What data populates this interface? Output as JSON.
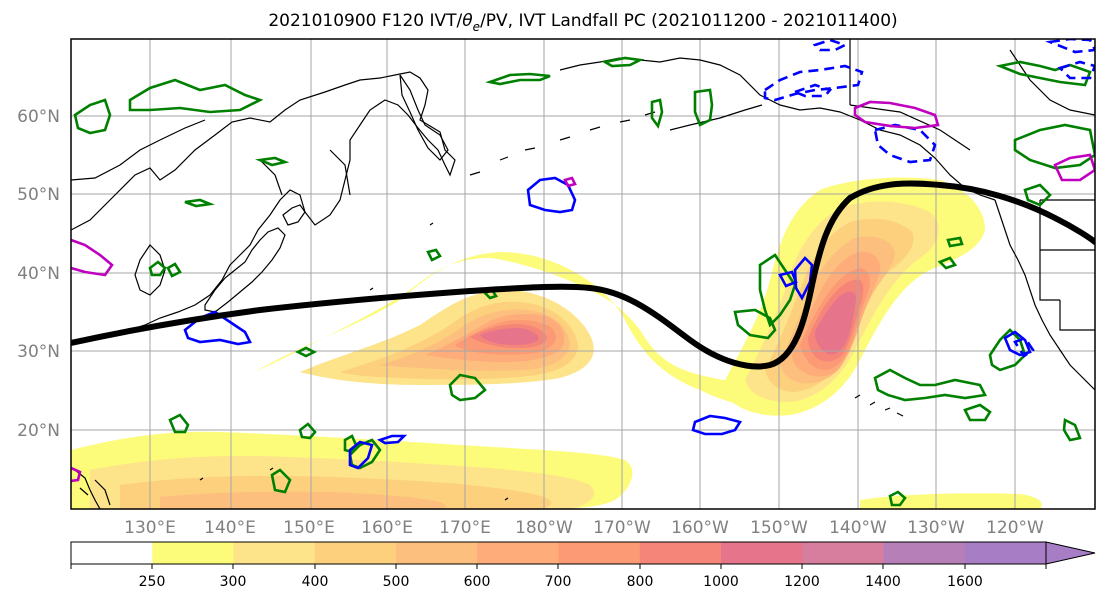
{
  "title_parts": {
    "prefix": "2021010900 F120 IVT/",
    "theta": "θ",
    "sub": "e",
    "suffix": "/PV, IVT Landfall PC (2021011200 - 2021011400)"
  },
  "map": {
    "lat_labels": [
      "60°N",
      "50°N",
      "40°N",
      "30°N",
      "20°N"
    ],
    "lon_labels": [
      "130°E",
      "140°E",
      "150°E",
      "160°E",
      "170°E",
      "180°W",
      "170°W",
      "160°W",
      "150°W",
      "140°W",
      "130°W",
      "120°W"
    ]
  },
  "colorbar": {
    "ticks": [
      "250",
      "300",
      "400",
      "500",
      "600",
      "700",
      "800",
      "1000",
      "1200",
      "1400",
      "1600"
    ],
    "colors": [
      "#ffffff",
      "#fdfb7a",
      "#fde48a",
      "#fdd07d",
      "#fdbf7e",
      "#fdac7a",
      "#fb9a74",
      "#f58579",
      "#e6748a",
      "#d77d9d",
      "#b67fb8",
      "#a77dc6",
      "#a77dc6"
    ]
  }
}
